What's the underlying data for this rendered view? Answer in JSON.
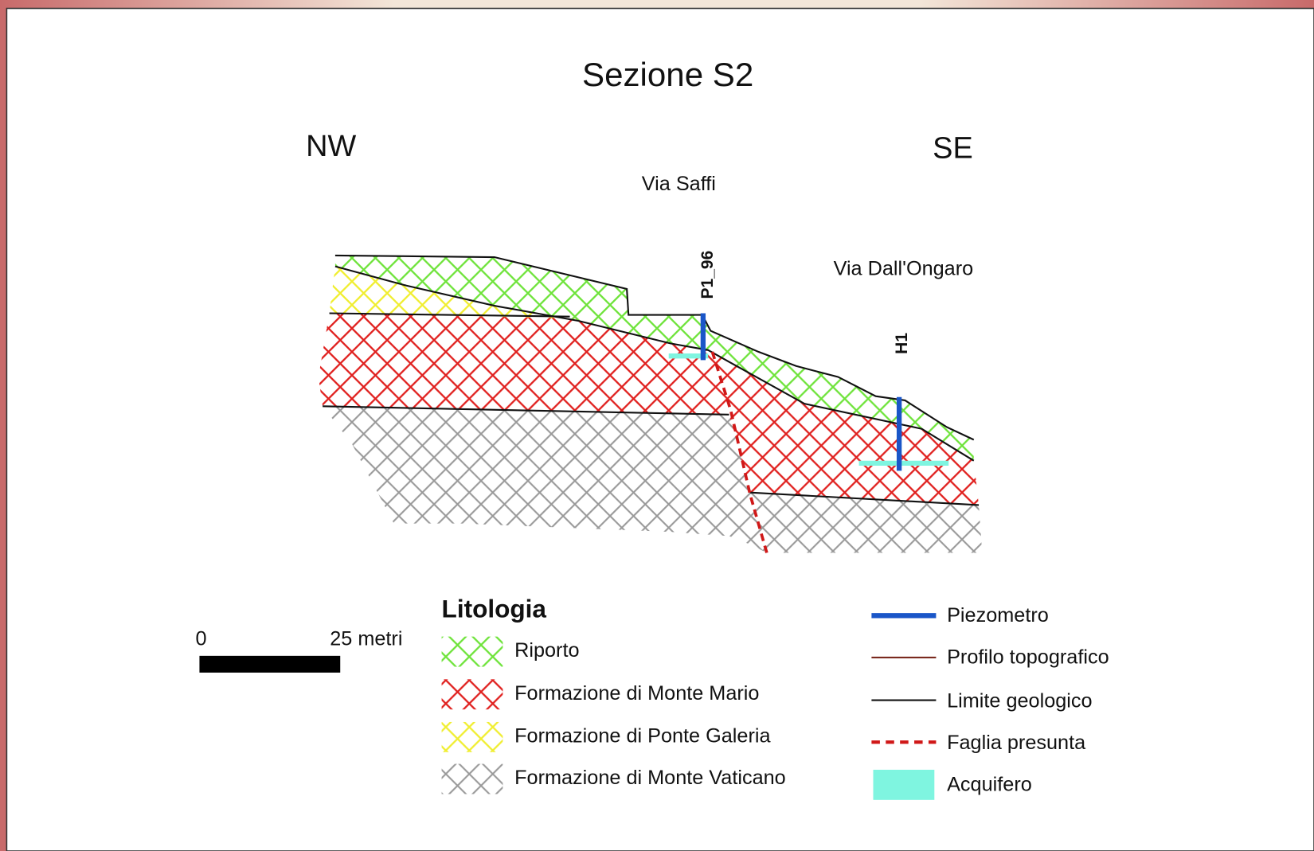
{
  "header": {
    "title": "Sezione S2"
  },
  "section": {
    "directions": [
      "NW",
      "SE"
    ],
    "streets": [
      "Via Saffi",
      "Via Dall'Ongaro"
    ],
    "wells": [
      "P1_96",
      "H1"
    ]
  },
  "scale_bar": {
    "start": "0",
    "end": "25 metri"
  },
  "legend": {
    "title": "Litologia",
    "lithology": [
      "Riporto",
      "Formazione di Monte Mario",
      "Formazione di Ponte Galeria",
      "Formazione di Monte Vaticano"
    ],
    "symbols": [
      "Piezometro",
      "Profilo topografico",
      "Limite geologico",
      "Faglia presunta",
      "Acquifero"
    ]
  }
}
